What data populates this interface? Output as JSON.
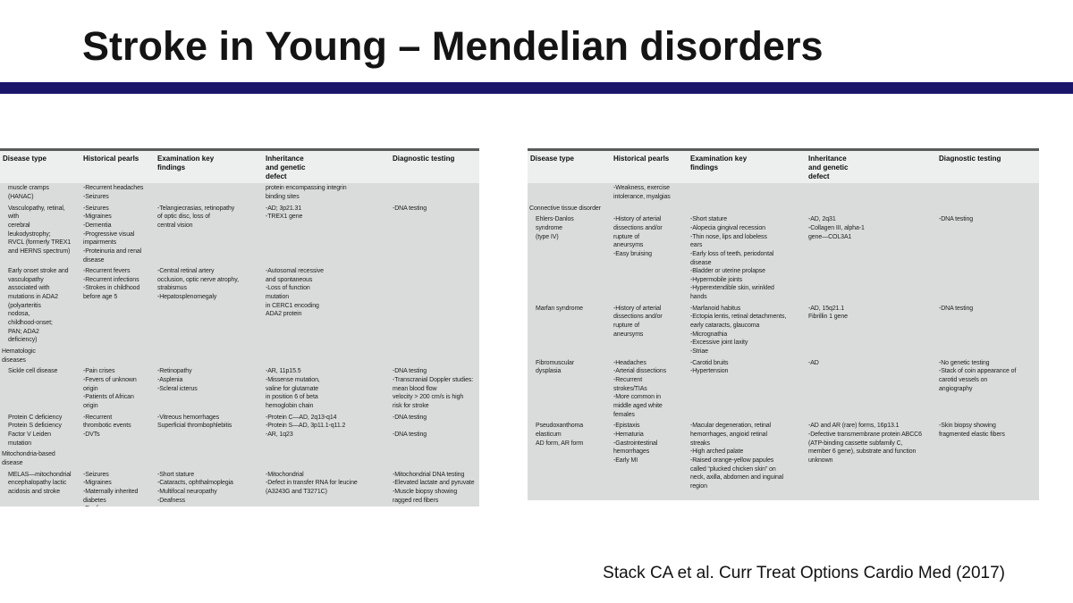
{
  "slide": {
    "title": "Stroke in Young – Mendelian disorders",
    "citation": "Stack CA et al. Curr Treat Options Cardio Med (2017)",
    "accent_bar_color": "#1c166b"
  },
  "table_left": {
    "columns": [
      "Disease type",
      "Historical pearls",
      "Examination key\nfindings",
      "Inheritance\nand genetic\ndefect",
      "Diagnostic testing"
    ],
    "rows": [
      {
        "section": false,
        "cells": [
          "muscle cramps\n(HANAC)",
          "-Recurrent headaches\n-Seizures",
          "",
          "protein encompassing integrin\nbinding sites",
          ""
        ]
      },
      {
        "section": false,
        "cells": [
          "Vasculopathy, retinal,\nwith\ncerebral\nleukodystrophy;\nRVCL (formerly TREX1\nand HERNS spectrum)",
          "-Seizures\n-Migraines\n-Dementia\n-Progressive visual\nimpairments\n-Proteinuria and renal\ndisease",
          "-Telangiecrasias, retinopathy\nof optic disc, loss of\ncentral vision",
          "-AD; 3p21.31\n-TREX1 gene",
          "-DNA testing"
        ]
      },
      {
        "section": false,
        "cells": [
          "Early onset stroke and\nvasculopathy\nassociated with\nmutations in ADA2\n(polyarteritis\nnodosa,\nchildhood-onset;\nPAN; ADA2\ndeficiency)",
          "-Recurrent fevers\n-Recurrent infections\n-Strokes in childhood\nbefore age 5",
          "-Central retinal artery\nocclusion, optic nerve atrophy,\nstrabismus\n-Hepatosplenomegaly",
          "-Autosomal recessive\nand spontaneous\n-Loss of function\nmutation\nin CERC1 encoding\nADA2 protein",
          ""
        ]
      },
      {
        "section": true,
        "cells": [
          "Hematologic\ndiseases",
          "",
          "",
          "",
          ""
        ]
      },
      {
        "section": false,
        "cells": [
          "Sickle cell disease",
          "-Pain crises\n-Fevers of unknown\norigin\n-Patients of African\norigin",
          "-Retinopathy\n-Asplenia\n-Scleral icterus",
          "-AR, 11p15.5\n-Missense mutation,\nvaline for glutamate\nin position 6 of beta\nhemoglobin chain",
          "-DNA testing\n-Transcranial Doppler studies:\nmean blood flow\nvelocity > 200 cm/s is high\nrisk for stroke"
        ]
      },
      {
        "section": false,
        "cells": [
          "Protein C deficiency\nProtein S deficiency\nFactor V Leiden\nmutation",
          "-Recurrent\nthrombotic events\n-DVTs",
          "-Vitreous hemorrhages\nSuperficial thrombophlebitis",
          "-Protein C—AD, 2q13-q14\n-Protein S—AD, 3p11.1-q11.2\n-AR, 1q23",
          "-DNA testing\n\n-DNA testing"
        ]
      },
      {
        "section": true,
        "cells": [
          "Mitochondria-based disease",
          "",
          "",
          "",
          ""
        ]
      },
      {
        "section": false,
        "cells": [
          "MELAS—mitochondrial\nencephalopathy lactic\nacidosis and stroke",
          "-Seizures\n-Migraines\n-Maternally inherited\ndiabetes\n-Deafness\n-Visual disturbances",
          "-Short stature\n-Cataracts, ophthalmoplegia\n-Multifocal neuropathy\n-Deafness",
          "-Mitochondrial\n-Defect in transfer RNA for leucine\n(A3243G and T3271C)",
          "-Mitochondrial DNA testing\n-Elevated lactate and pyruvate\n-Muscle biopsy showing\nragged red fibers"
        ]
      }
    ]
  },
  "table_right": {
    "columns": [
      "Disease type",
      "Historical pearls",
      "Examination key\nfindings",
      "Inheritance\nand genetic\ndefect",
      "Diagnostic testing"
    ],
    "rows": [
      {
        "section": false,
        "cells": [
          "",
          "-Weakness, exercise\nintolerance, myalgias",
          "",
          "",
          ""
        ]
      },
      {
        "section": true,
        "cells": [
          "Connective tissue disorder",
          "",
          "",
          "",
          ""
        ]
      },
      {
        "section": false,
        "cells": [
          "Ehlers-Danlos\nsyndrome\n(type IV)",
          "-History of arterial\ndissections and/or\nrupture of\naneursyms\n-Easy bruising",
          "-Short stature\n-Alopecia gingival recession\n-Thin nose, lips and lobeless\nears\n-Early loss of teeth, periodontal\ndisease\n-Bladder or uterine prolapse\n-Hypermobile joints\n-Hyperextendible skin, wrinkled\nhands",
          "-AD, 2q31\n-Collagen III, alpha-1\ngene—COL3A1",
          "-DNA testing"
        ]
      },
      {
        "section": false,
        "cells": [
          "Marfan syndrome",
          "-History of arterial\ndissections and/or\nrupture of\naneursyms",
          "-Marfanoid habitus\n-Ectopia lentis, retinal detachments,\nearly cataracts, glaucoma\n-Micrognathia\n-Excessive joint laxity\n-Striae",
          "-AD, 15q21.1\nFibrillin 1 gene",
          "-DNA testing"
        ]
      },
      {
        "section": false,
        "cells": [
          "Fibromuscular\ndysplasia",
          "-Headaches\n-Arterial dissections\n-Recurrent\nstrokes/TIAs\n-More common in\nmiddle aged white\nfemales",
          "-Carotid bruits\n-Hypertension",
          "-AD",
          "-No genetic testing\n-Stack of coin appearance of\ncarotid vessels on\nangiography"
        ]
      },
      {
        "section": false,
        "cells": [
          "Pseudoxanthoma\nelasticum\nAD form, AR form",
          "-Epistaxis\n-Hematuria\n-Gastrointestinal\nhemorrhages\n-Early MI",
          "-Macular degeneration, retinal\nhemorrhages, angioid retinal\nstreaks\n-High arched palate\n-Raised orange-yellow papules\ncalled “plucked chicken skin” on\nneck, axilla, abdomen and inguinal\nregion",
          "-AD and AR (rare) forms, 16p13.1\n-Defective transmembrane protein ABCC6\n(ATP-binding cassette subfamily C,\nmember 6 gene), substrate and function\nunknown",
          "-Skin biopsy showing\nfragmented elastic fibers"
        ]
      }
    ]
  }
}
